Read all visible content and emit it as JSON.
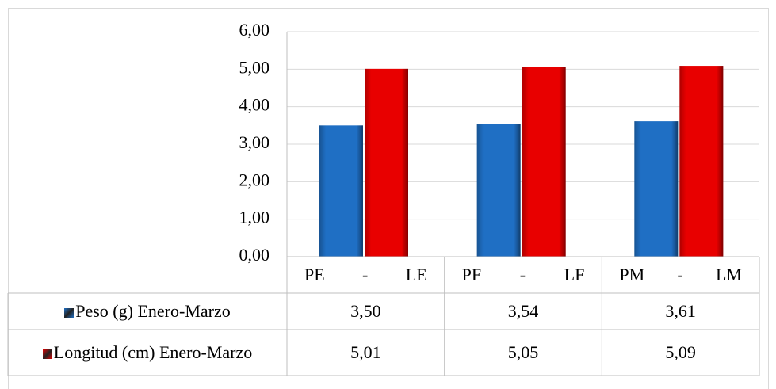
{
  "chart_data": {
    "type": "bar",
    "categories": [
      "PE - LE",
      "PF - LF",
      "PM - LM"
    ],
    "series": [
      {
        "name": "Peso (g) Enero-Marzo",
        "color": "#1f6fc4",
        "values": [
          3.5,
          3.54,
          3.61
        ],
        "value_labels": [
          "3,50",
          "3,54",
          "3,61"
        ]
      },
      {
        "name": "Longitud (cm) Enero-Marzo",
        "color": "#e80000",
        "values": [
          5.01,
          5.05,
          5.09
        ],
        "value_labels": [
          "5,01",
          "5,05",
          "5,09"
        ]
      }
    ],
    "ylim": [
      0,
      6
    ],
    "yticks": [
      {
        "value": 0,
        "label": "0,00"
      },
      {
        "value": 1,
        "label": "1,00"
      },
      {
        "value": 2,
        "label": "2,00"
      },
      {
        "value": 3,
        "label": "3,00"
      },
      {
        "value": 4,
        "label": "4,00"
      },
      {
        "value": 5,
        "label": "5,00"
      },
      {
        "value": 6,
        "label": "6,00"
      }
    ],
    "grid": true,
    "data_table": true
  }
}
